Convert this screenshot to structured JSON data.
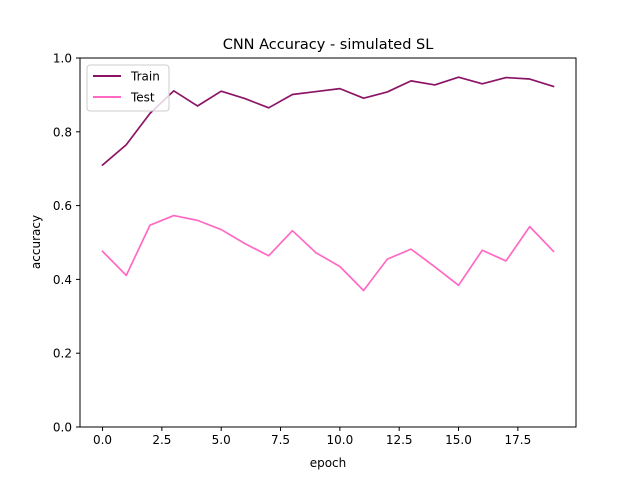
{
  "chart_data": {
    "type": "line",
    "title": "CNN Accuracy - simulated SL",
    "xlabel": "epoch",
    "ylabel": "accuracy",
    "xlim": [
      -0.95,
      19.95
    ],
    "ylim": [
      0.0,
      1.0
    ],
    "x_ticks": [
      0.0,
      2.5,
      5.0,
      7.5,
      10.0,
      12.5,
      15.0,
      17.5
    ],
    "x_tick_labels": [
      "0.0",
      "2.5",
      "5.0",
      "7.5",
      "10.0",
      "12.5",
      "15.0",
      "17.5"
    ],
    "y_ticks": [
      0.0,
      0.2,
      0.4,
      0.6,
      0.8,
      1.0
    ],
    "y_tick_labels": [
      "0.0",
      "0.2",
      "0.4",
      "0.6",
      "0.8",
      "1.0"
    ],
    "grid": false,
    "legend_position": "top-left",
    "x": [
      0,
      1,
      2,
      3,
      4,
      5,
      6,
      7,
      8,
      9,
      10,
      11,
      12,
      13,
      14,
      15,
      16,
      17,
      18,
      19
    ],
    "series": [
      {
        "name": "Train",
        "color": "#8b1466",
        "values": [
          0.71,
          0.765,
          0.85,
          0.911,
          0.87,
          0.91,
          0.89,
          0.865,
          0.901,
          0.909,
          0.917,
          0.891,
          0.908,
          0.938,
          0.927,
          0.948,
          0.93,
          0.947,
          0.943,
          0.923
        ]
      },
      {
        "name": "Test",
        "color": "#ff69c4",
        "values": [
          0.476,
          0.411,
          0.547,
          0.573,
          0.56,
          0.535,
          0.497,
          0.464,
          0.532,
          0.472,
          0.435,
          0.37,
          0.455,
          0.482,
          0.434,
          0.384,
          0.479,
          0.45,
          0.543,
          0.476
        ]
      }
    ]
  }
}
